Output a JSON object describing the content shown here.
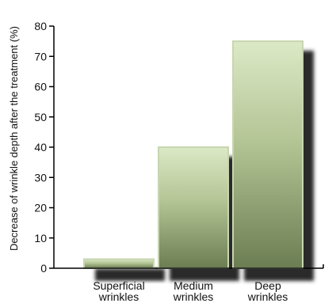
{
  "chart_data": {
    "type": "bar",
    "categories": [
      [
        "Superficial",
        "wrinkles"
      ],
      [
        "Medium",
        "wrinkles"
      ],
      [
        "Deep",
        "wrinkles"
      ]
    ],
    "values": [
      3,
      40,
      75
    ],
    "ylabel": "Decrease of wrinkle depth after the treatment (%)",
    "yticks": [
      "0",
      "10",
      "20",
      "30",
      "40",
      "50",
      "60",
      "70",
      "80"
    ],
    "ylim": [
      0,
      80
    ],
    "grid": false,
    "colors": {
      "bar_top": "#dce9c6",
      "bar_bottom": "#6b7d52",
      "bar_border": "#c8d6b0",
      "shadow": "#2c2c2c",
      "axis": "#000000"
    }
  }
}
